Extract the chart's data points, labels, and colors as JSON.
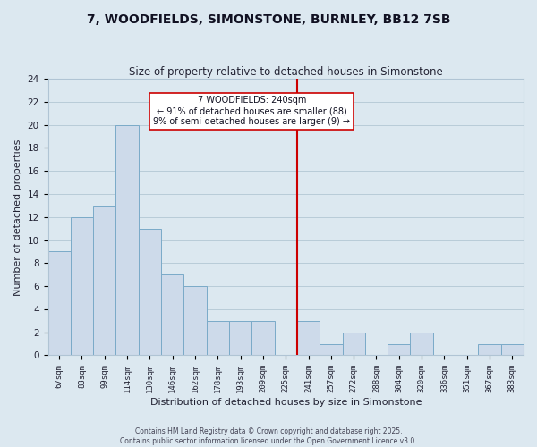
{
  "title": "7, WOODFIELDS, SIMONSTONE, BURNLEY, BB12 7SB",
  "subtitle": "Size of property relative to detached houses in Simonstone",
  "xlabel": "Distribution of detached houses by size in Simonstone",
  "ylabel": "Number of detached properties",
  "bar_labels": [
    "67sqm",
    "83sqm",
    "99sqm",
    "114sqm",
    "130sqm",
    "146sqm",
    "162sqm",
    "178sqm",
    "193sqm",
    "209sqm",
    "225sqm",
    "241sqm",
    "257sqm",
    "272sqm",
    "288sqm",
    "304sqm",
    "320sqm",
    "336sqm",
    "351sqm",
    "367sqm",
    "383sqm"
  ],
  "bar_values": [
    9,
    12,
    13,
    20,
    11,
    7,
    6,
    3,
    3,
    3,
    0,
    3,
    1,
    2,
    0,
    1,
    2,
    0,
    0,
    1,
    1
  ],
  "bar_color": "#cddaea",
  "bar_edgecolor": "#7aaac8",
  "vline_color": "#cc0000",
  "annotation_title": "7 WOODFIELDS: 240sqm",
  "annotation_line1": "← 91% of detached houses are smaller (88)",
  "annotation_line2": "9% of semi-detached houses are larger (9) →",
  "annotation_box_facecolor": "#ffffff",
  "annotation_box_edgecolor": "#cc0000",
  "ylim": [
    0,
    24
  ],
  "yticks": [
    0,
    2,
    4,
    6,
    8,
    10,
    12,
    14,
    16,
    18,
    20,
    22,
    24
  ],
  "grid_color": "#b8ccd8",
  "background_color": "#dce8f0",
  "footer1": "Contains HM Land Registry data © Crown copyright and database right 2025.",
  "footer2": "Contains public sector information licensed under the Open Government Licence v3.0."
}
